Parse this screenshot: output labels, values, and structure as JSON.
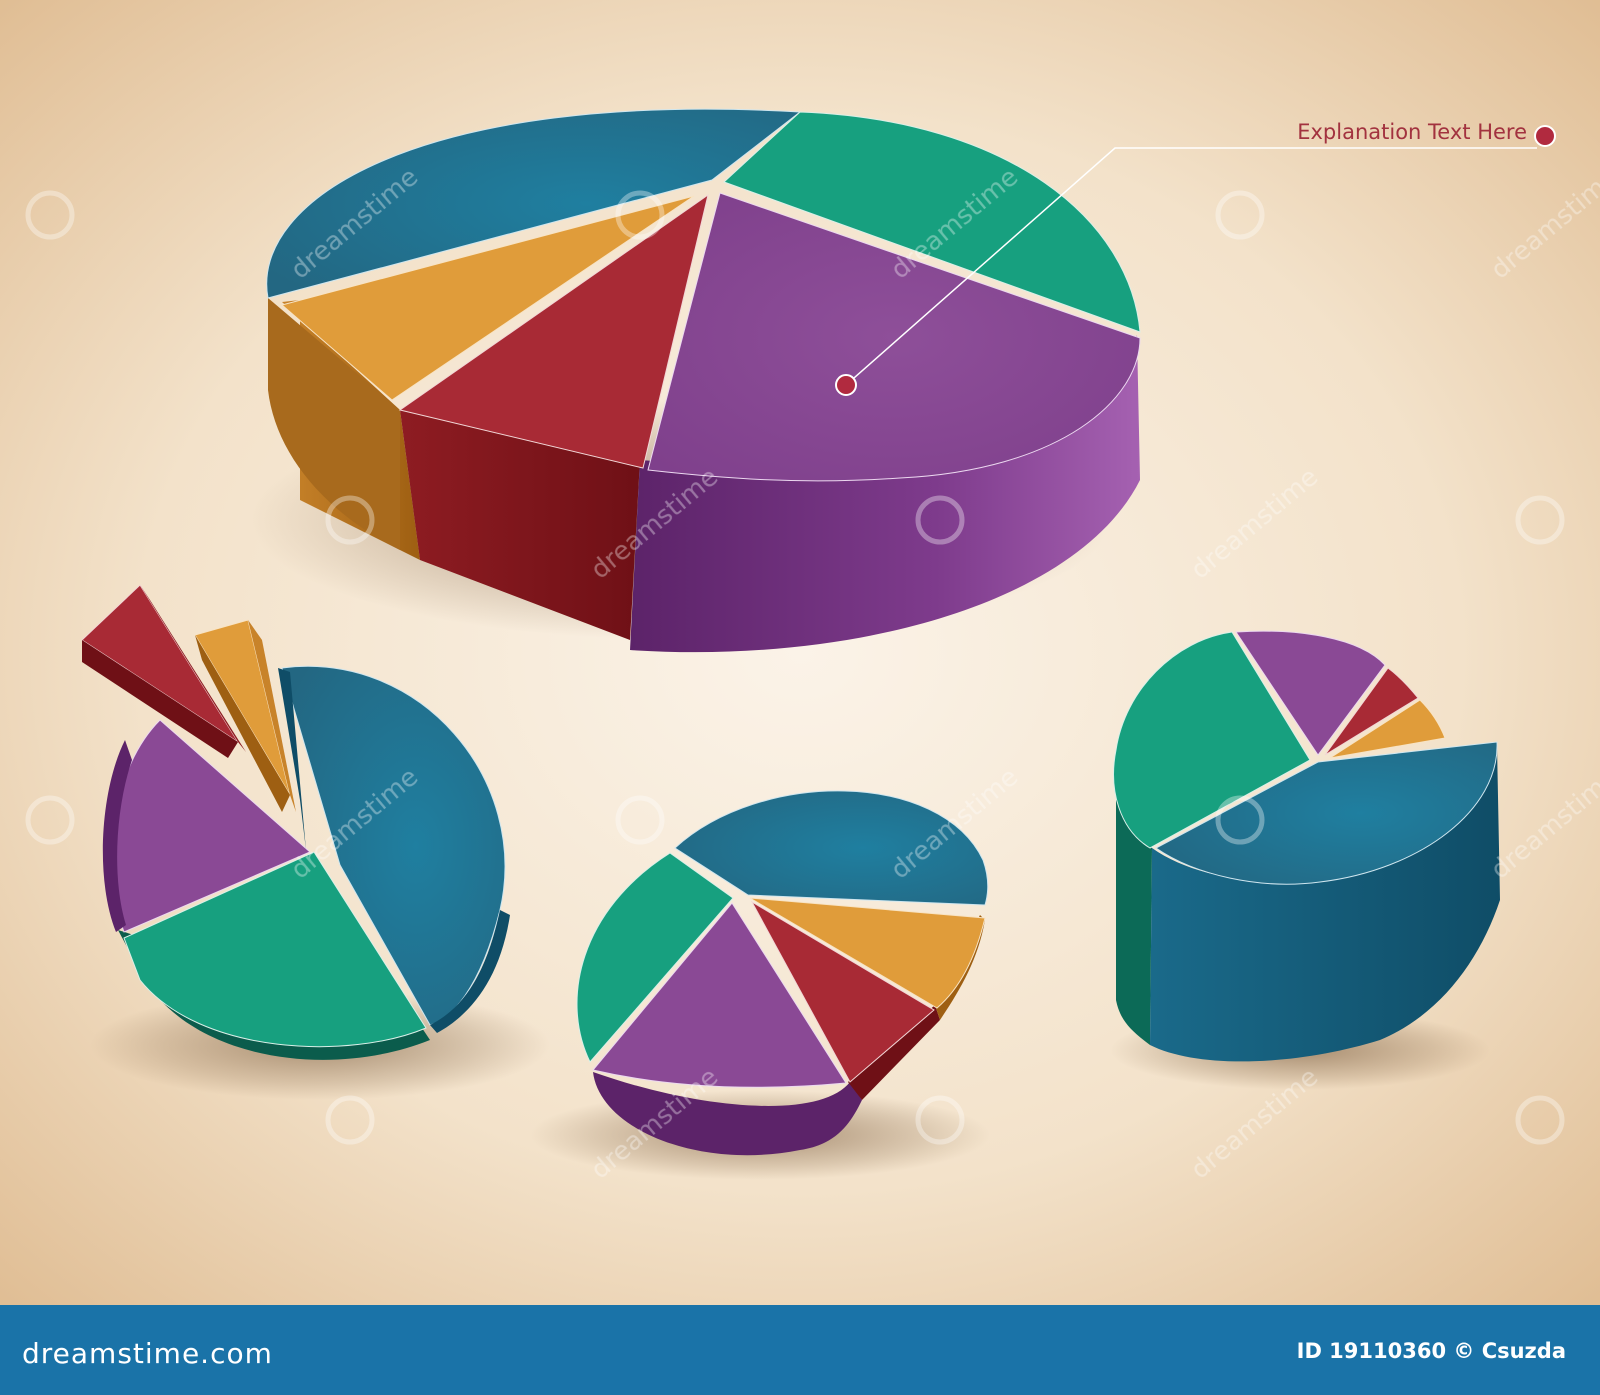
{
  "annotation": {
    "text": "Explanation Text Here"
  },
  "footer": {
    "brand": "dreamstime.com",
    "id": "ID 19110360 © Csuzda"
  },
  "watermark": {
    "text": "dreamstime"
  },
  "colors": {
    "background_center": "#fbf3e8",
    "background_edge": "#e3c39c",
    "annotation_text": "#a2323f",
    "annotation_dot": "#b12a3f",
    "footer_bar": "#1a73a8"
  },
  "chart_data": [
    {
      "type": "pie",
      "style": "3d",
      "slices": [
        {
          "color": "teal",
          "value": 0.17
        },
        {
          "color": "purple",
          "value": 0.33
        },
        {
          "color": "red",
          "value": 0.1
        },
        {
          "color": "orange",
          "value": 0.07
        },
        {
          "color": "blue",
          "value": 0.33
        }
      ],
      "annotation_on": "purple"
    },
    {
      "type": "pie",
      "style": "3d",
      "slices": [
        {
          "color": "blue",
          "value": 0.36,
          "exploded": false
        },
        {
          "color": "teal",
          "value": 0.29,
          "exploded": false
        },
        {
          "color": "purple",
          "value": 0.17,
          "exploded": false
        },
        {
          "color": "red",
          "value": 0.08,
          "exploded": true
        },
        {
          "color": "orange",
          "value": 0.05,
          "exploded": true
        }
      ]
    },
    {
      "type": "pie",
      "style": "3d",
      "slices": [
        {
          "color": "blue",
          "value": 0.31
        },
        {
          "color": "orange",
          "value": 0.08
        },
        {
          "color": "red",
          "value": 0.1
        },
        {
          "color": "purple",
          "value": 0.24
        },
        {
          "color": "teal",
          "value": 0.2
        }
      ]
    },
    {
      "type": "pie",
      "style": "3d",
      "slices": [
        {
          "color": "teal",
          "value": 0.32
        },
        {
          "color": "purple",
          "value": 0.12
        },
        {
          "color": "red",
          "value": 0.04
        },
        {
          "color": "orange",
          "value": 0.04
        },
        {
          "color": "blue",
          "value": 0.48
        }
      ]
    }
  ]
}
